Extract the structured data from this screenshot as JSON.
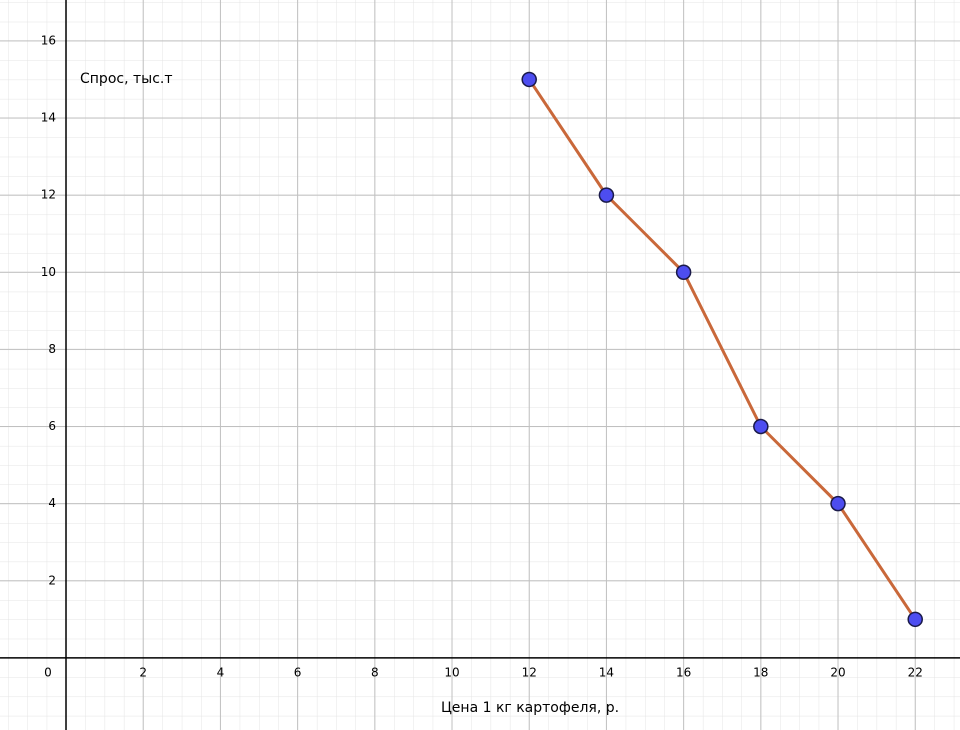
{
  "chart_data": {
    "type": "line",
    "x_label": "Цена 1 кг картофеля, р.",
    "y_label": "Спрос, тыс.т",
    "x": [
      12,
      14,
      16,
      18,
      20,
      22
    ],
    "series": [
      {
        "color": "#c9683a",
        "marker_color": "#4d4df0",
        "values": [
          15,
          12,
          10,
          6,
          4,
          1
        ]
      }
    ],
    "xlim": [
      -1.71,
      23.16
    ],
    "ylim": [
      -1.87,
      17.06
    ],
    "xticks": [
      0,
      2,
      4,
      6,
      8,
      10,
      12,
      14,
      16,
      18,
      20,
      22
    ],
    "yticks": [
      2,
      4,
      6,
      8,
      10,
      12,
      14,
      16
    ],
    "grid": true
  }
}
